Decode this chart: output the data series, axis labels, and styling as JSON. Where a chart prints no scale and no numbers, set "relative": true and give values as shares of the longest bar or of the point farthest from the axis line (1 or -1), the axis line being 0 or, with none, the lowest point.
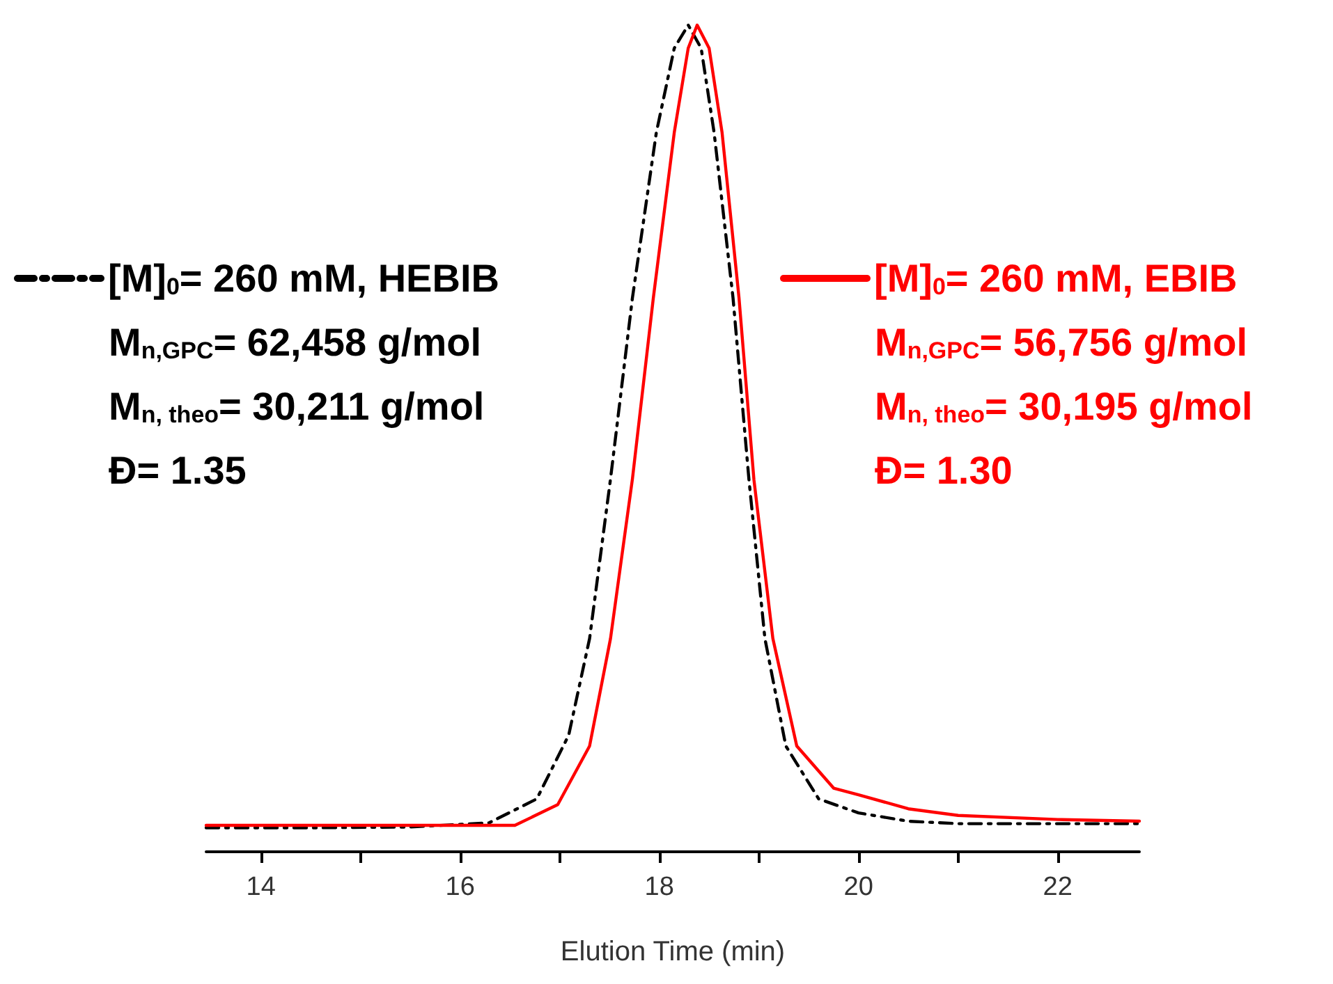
{
  "chart_data": {
    "type": "line",
    "relative": true,
    "xlabel": "Elution Time (min)",
    "xlim": [
      13.45,
      22.82
    ],
    "xticks": [
      14,
      {
        "value": 15,
        "label": null
      },
      16,
      {
        "value": 17,
        "label": null
      },
      18,
      {
        "value": 19,
        "label": null
      },
      20,
      {
        "value": 21,
        "label": null
      },
      22
    ],
    "legend": "top",
    "grid": false,
    "marker": "none",
    "series": [
      {
        "name": "[M]$_{0}$= 260 mM, HEBIB",
        "color": "#000000",
        "line_style": "dashed",
        "x": [
          13.45,
          14.5,
          15.5,
          16.29,
          16.77,
          17.09,
          17.3,
          17.51,
          17.73,
          17.97,
          18.15,
          18.29,
          18.42,
          18.55,
          18.74,
          18.9,
          19.06,
          19.27,
          19.6,
          20,
          20.5,
          21,
          22,
          22.82
        ],
        "values": [
          0.029,
          0.029,
          0.03,
          0.035,
          0.064,
          0.141,
          0.258,
          0.451,
          0.67,
          0.87,
          0.972,
          1.0,
          0.972,
          0.87,
          0.67,
          0.45,
          0.258,
          0.128,
          0.064,
          0.047,
          0.037,
          0.034,
          0.034,
          0.034
        ]
      },
      {
        "name": "[M]$_{0}$= 260 mM, EBIB",
        "color": "#ff0000",
        "line_style": "solid",
        "x": [
          13.45,
          14.5,
          15.5,
          16.55,
          16.98,
          17.3,
          17.51,
          17.73,
          17.94,
          18.15,
          18.29,
          18.38,
          18.5,
          18.63,
          18.8,
          18.95,
          19.14,
          19.38,
          19.75,
          20,
          20.5,
          21,
          22,
          22.82
        ],
        "values": [
          0.032,
          0.032,
          0.032,
          0.032,
          0.057,
          0.128,
          0.258,
          0.451,
          0.67,
          0.87,
          0.972,
          1.0,
          0.972,
          0.87,
          0.67,
          0.45,
          0.258,
          0.128,
          0.077,
          0.069,
          0.052,
          0.044,
          0.039,
          0.037
        ]
      }
    ],
    "annotations": [
      "M$_{n,GPC}$= 62,458 g/mol",
      "M$_{n, theo}$= 30,211 g/mol",
      "Đ= 1.35",
      "M$_{n,GPC}$= 56,756 g/mol",
      "M$_{n, theo}$= 30,195 g/mol",
      "Đ= 1.30"
    ]
  }
}
